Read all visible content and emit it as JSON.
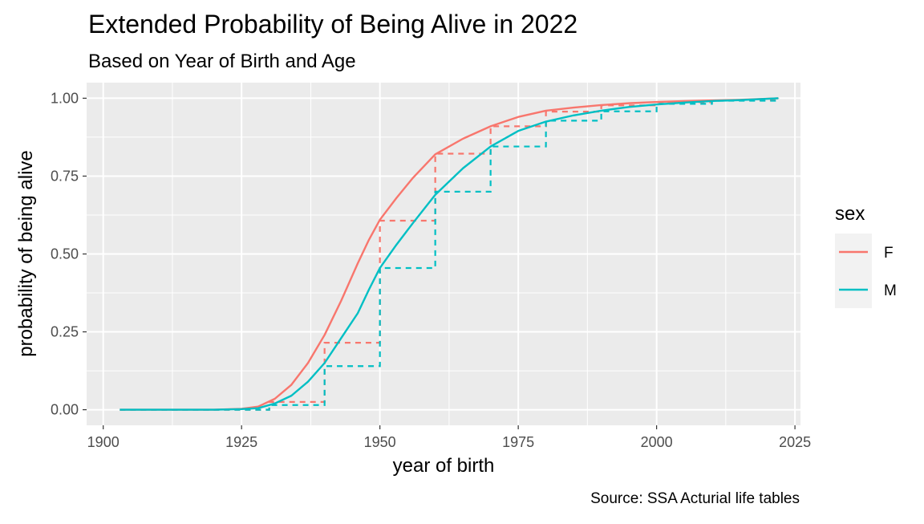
{
  "chart_data": {
    "type": "line",
    "title": "Extended Probability of Being Alive in 2022",
    "subtitle": "Based on Year of Birth and Age",
    "xlabel": "year of birth",
    "ylabel": "probability of being alive",
    "caption": "Source: SSA Acturial life tables",
    "xlim": [
      1897,
      2026
    ],
    "ylim": [
      -0.05,
      1.05
    ],
    "x_ticks": [
      1900,
      1925,
      1950,
      1975,
      2000,
      2025
    ],
    "y_ticks": [
      0,
      0.25,
      0.5,
      0.75,
      1.0
    ],
    "x_tick_labels": [
      "1900",
      "1925",
      "1950",
      "1975",
      "2000",
      "2025"
    ],
    "y_tick_labels": [
      "0.00",
      "0.25",
      "0.50",
      "0.75",
      "1.00"
    ],
    "grid": true,
    "legend": {
      "title": "sex",
      "placement": "right",
      "entries": [
        "F",
        "M"
      ]
    },
    "colors": {
      "F": "#F8766D",
      "M": "#00BFC4",
      "panel": "#EBEBEB",
      "grid": "#FFFFFF"
    },
    "series": [
      {
        "name": "F",
        "style": "solid",
        "x": [
          1903,
          1915,
          1920,
          1925,
          1928,
          1931,
          1934,
          1937,
          1940,
          1943,
          1946,
          1948,
          1950,
          1953,
          1956,
          1960,
          1965,
          1970,
          1975,
          1980,
          1985,
          1990,
          1995,
          2000,
          2005,
          2010,
          2015,
          2022
        ],
        "y": [
          0.0,
          0.0,
          0.0,
          0.003,
          0.01,
          0.035,
          0.08,
          0.15,
          0.24,
          0.35,
          0.47,
          0.545,
          0.61,
          0.68,
          0.745,
          0.82,
          0.87,
          0.91,
          0.94,
          0.96,
          0.97,
          0.978,
          0.984,
          0.988,
          0.991,
          0.993,
          0.995,
          1.0
        ]
      },
      {
        "name": "M",
        "style": "solid",
        "x": [
          1903,
          1915,
          1920,
          1925,
          1928,
          1931,
          1934,
          1937,
          1940,
          1943,
          1946,
          1948,
          1950,
          1953,
          1956,
          1960,
          1965,
          1970,
          1975,
          1980,
          1985,
          1990,
          1995,
          2000,
          2005,
          2010,
          2015,
          2022
        ],
        "y": [
          0.0,
          0.0,
          0.0,
          0.002,
          0.005,
          0.02,
          0.045,
          0.09,
          0.15,
          0.23,
          0.31,
          0.385,
          0.455,
          0.53,
          0.6,
          0.69,
          0.775,
          0.845,
          0.895,
          0.925,
          0.945,
          0.96,
          0.972,
          0.98,
          0.986,
          0.991,
          0.994,
          1.0
        ]
      },
      {
        "name": "F",
        "style": "dashed-step",
        "x": [
          1903,
          1930,
          1940,
          1950,
          1960,
          1970,
          1980,
          1990,
          2000,
          2010,
          2022
        ],
        "y": [
          0.0,
          0.025,
          0.215,
          0.607,
          0.822,
          0.91,
          0.957,
          0.977,
          0.987,
          0.993,
          1.0
        ]
      },
      {
        "name": "M",
        "style": "dashed-step",
        "x": [
          1903,
          1930,
          1940,
          1950,
          1960,
          1970,
          1980,
          1990,
          2000,
          2010,
          2022
        ],
        "y": [
          0.0,
          0.015,
          0.14,
          0.455,
          0.7,
          0.845,
          0.928,
          0.958,
          0.982,
          0.992,
          1.0
        ]
      }
    ]
  }
}
